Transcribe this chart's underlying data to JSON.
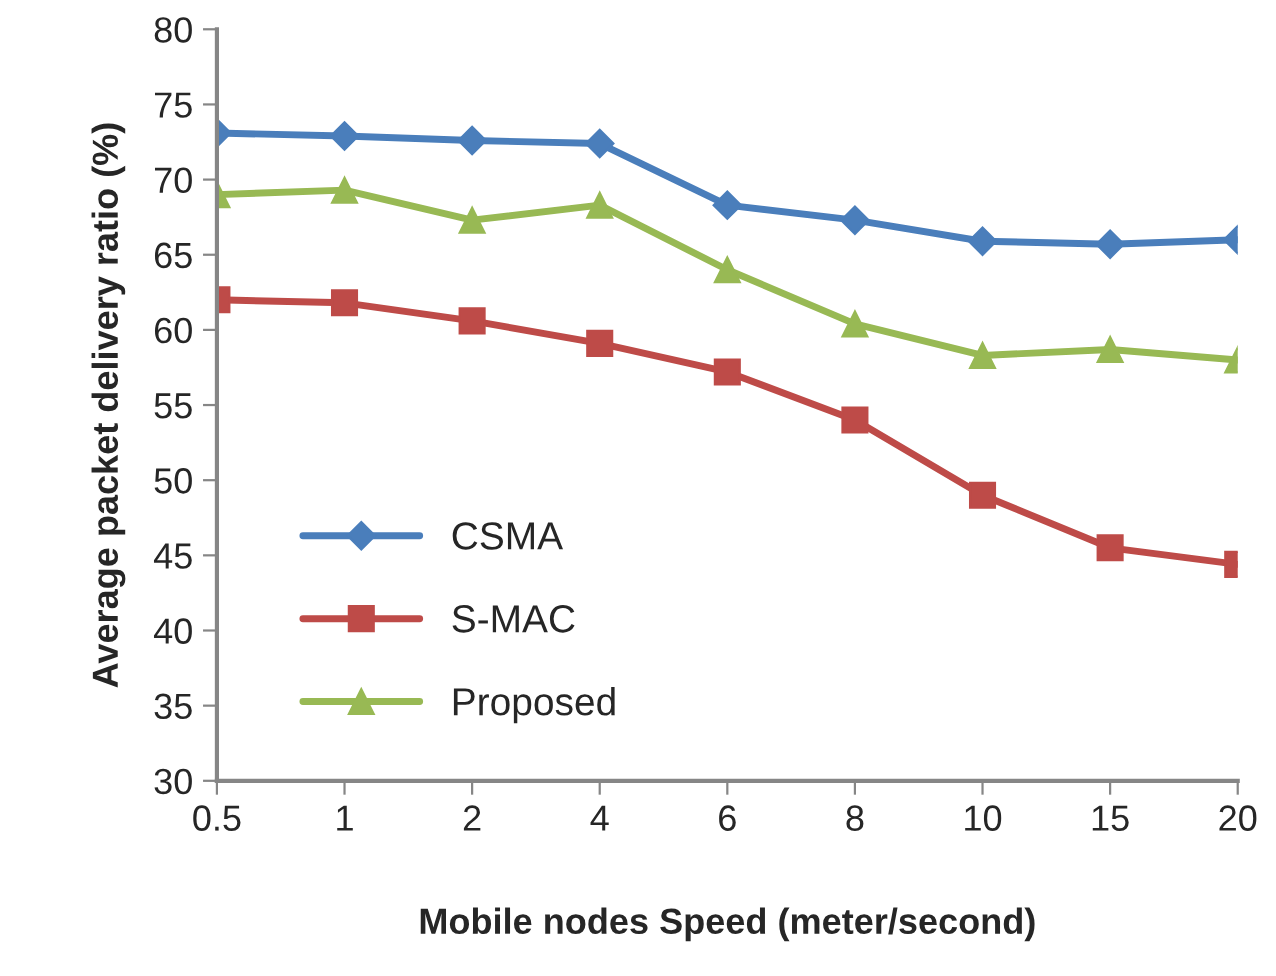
{
  "chart_data": {
    "type": "line",
    "xlabel": "Mobile nodes Speed (meter/second)",
    "ylabel": "Average packet delivery ratio (%)",
    "categories": [
      "0.5",
      "1",
      "2",
      "4",
      "6",
      "8",
      "10",
      "15",
      "20"
    ],
    "series": [
      {
        "name": "CSMA",
        "color": "#4a7ebb",
        "marker": "diamond",
        "values": [
          73.1,
          72.9,
          72.6,
          72.4,
          68.3,
          67.3,
          65.9,
          65.7,
          66.0
        ]
      },
      {
        "name": "S-MAC",
        "color": "#be4b48",
        "marker": "square",
        "values": [
          62.0,
          61.8,
          60.6,
          59.1,
          57.2,
          54.0,
          49.0,
          45.5,
          44.4
        ]
      },
      {
        "name": "Proposed",
        "color": "#98b954",
        "marker": "triangle",
        "values": [
          69.0,
          69.3,
          67.3,
          68.3,
          64.0,
          60.4,
          58.3,
          58.7,
          58.0
        ]
      }
    ],
    "ylim": [
      30,
      80
    ],
    "yticks": [
      30,
      35,
      40,
      45,
      50,
      55,
      60,
      65,
      70,
      75,
      80
    ],
    "grid": false,
    "legend": "bottom left",
    "line_style": "solid"
  }
}
